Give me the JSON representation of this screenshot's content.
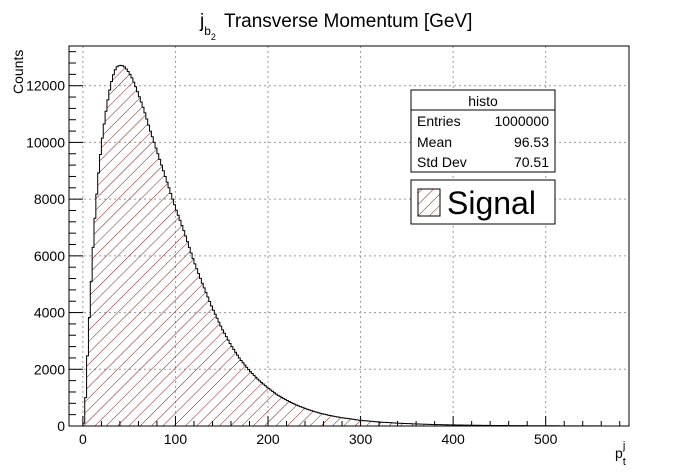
{
  "chart_data": {
    "type": "bar",
    "title_main": "j",
    "title_sub": "b",
    "title_subsub": "2",
    "title_rest": "Transverse Momentum [GeV]",
    "xlabel_main": "p",
    "xlabel_sub": "t",
    "xlabel_sup": "j",
    "ylabel": "Counts",
    "xlim": [
      -15,
      590
    ],
    "ylim": [
      0,
      13400
    ],
    "x_ticks": [
      0,
      100,
      200,
      300,
      400,
      500
    ],
    "y_ticks": [
      0,
      2000,
      4000,
      6000,
      8000,
      10000,
      12000
    ],
    "grid": true,
    "bin_width": 2,
    "fill_style": "red diagonal hatch",
    "profile_points": [
      [
        0,
        0
      ],
      [
        2,
        200
      ],
      [
        4,
        1800
      ],
      [
        8,
        4500
      ],
      [
        12,
        6900
      ],
      [
        16,
        8600
      ],
      [
        20,
        9900
      ],
      [
        24,
        10900
      ],
      [
        28,
        11700
      ],
      [
        32,
        12300
      ],
      [
        36,
        12650
      ],
      [
        40,
        12720
      ],
      [
        44,
        12700
      ],
      [
        48,
        12550
      ],
      [
        52,
        12350
      ],
      [
        56,
        12050
      ],
      [
        60,
        11700
      ],
      [
        66,
        11150
      ],
      [
        72,
        10500
      ],
      [
        80,
        9700
      ],
      [
        90,
        8700
      ],
      [
        100,
        7700
      ],
      [
        110,
        6800
      ],
      [
        120,
        5800
      ],
      [
        130,
        4950
      ],
      [
        140,
        4150
      ],
      [
        150,
        3450
      ],
      [
        160,
        2850
      ],
      [
        170,
        2350
      ],
      [
        180,
        1950
      ],
      [
        190,
        1620
      ],
      [
        200,
        1340
      ],
      [
        210,
        1100
      ],
      [
        220,
        910
      ],
      [
        230,
        750
      ],
      [
        240,
        620
      ],
      [
        250,
        510
      ],
      [
        260,
        420
      ],
      [
        270,
        350
      ],
      [
        280,
        290
      ],
      [
        300,
        200
      ],
      [
        320,
        140
      ],
      [
        340,
        100
      ],
      [
        360,
        72
      ],
      [
        380,
        52
      ],
      [
        400,
        38
      ],
      [
        420,
        28
      ],
      [
        440,
        20
      ],
      [
        460,
        15
      ],
      [
        480,
        11
      ],
      [
        500,
        8
      ],
      [
        520,
        6
      ],
      [
        540,
        4
      ],
      [
        560,
        2
      ],
      [
        580,
        1
      ]
    ],
    "stats_box": {
      "title": "histo",
      "rows": [
        {
          "label": "Entries",
          "value": "1000000"
        },
        {
          "label": "Mean",
          "value": "96.53"
        },
        {
          "label": "Std Dev",
          "value": "70.51"
        }
      ]
    },
    "legend": {
      "entries": [
        "Signal"
      ],
      "placement": "top-right"
    },
    "colors": {
      "hist_line": "#000000",
      "hatch": "#8b1a1a",
      "grid": "#9a9a9a",
      "frame": "#000000"
    }
  }
}
